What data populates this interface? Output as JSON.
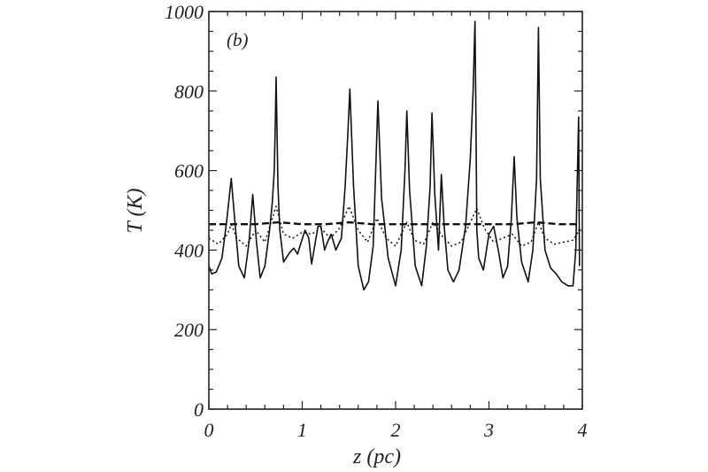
{
  "chart_data": {
    "type": "line",
    "panel_label": "(b)",
    "xlabel": "z  (pc)",
    "ylabel": "T  (K)",
    "xlim": [
      0,
      4
    ],
    "ylim": [
      0,
      1000
    ],
    "x_ticks": [
      "0",
      "1",
      "2",
      "3",
      "4"
    ],
    "y_ticks": [
      "0",
      "200",
      "400",
      "600",
      "800",
      "1000"
    ],
    "grid": false,
    "series": [
      {
        "style": "solid",
        "x": [
          0.0,
          0.03,
          0.08,
          0.14,
          0.19,
          0.24,
          0.28,
          0.32,
          0.38,
          0.43,
          0.47,
          0.51,
          0.55,
          0.6,
          0.65,
          0.68,
          0.7,
          0.71,
          0.72,
          0.73,
          0.74,
          0.76,
          0.8,
          0.87,
          0.91,
          0.95,
          0.99,
          1.03,
          1.07,
          1.1,
          1.14,
          1.17,
          1.2,
          1.24,
          1.27,
          1.31,
          1.36,
          1.42,
          1.46,
          1.49,
          1.51,
          1.55,
          1.6,
          1.66,
          1.71,
          1.76,
          1.79,
          1.81,
          1.85,
          1.92,
          2.0,
          2.06,
          2.1,
          2.12,
          2.15,
          2.21,
          2.28,
          2.33,
          2.37,
          2.39,
          2.42,
          2.46,
          2.49,
          2.52,
          2.56,
          2.62,
          2.68,
          2.75,
          2.8,
          2.83,
          2.85,
          2.86,
          2.87,
          2.89,
          2.94,
          3.0,
          3.05,
          3.1,
          3.15,
          3.2,
          3.24,
          3.27,
          3.3,
          3.35,
          3.42,
          3.47,
          3.51,
          3.53,
          3.55,
          3.6,
          3.66,
          3.72,
          3.78,
          3.85,
          3.9,
          3.93,
          3.96,
          3.97
        ],
        "y": [
          360,
          340,
          345,
          380,
          470,
          580,
          470,
          360,
          330,
          420,
          540,
          420,
          330,
          360,
          450,
          520,
          600,
          700,
          835,
          700,
          560,
          450,
          370,
          395,
          405,
          390,
          420,
          450,
          430,
          365,
          420,
          460,
          460,
          400,
          420,
          440,
          400,
          430,
          560,
          700,
          805,
          560,
          360,
          300,
          320,
          410,
          620,
          775,
          530,
          380,
          310,
          400,
          600,
          750,
          550,
          360,
          310,
          410,
          560,
          745,
          540,
          400,
          590,
          460,
          350,
          320,
          350,
          460,
          630,
          800,
          975,
          750,
          450,
          380,
          350,
          440,
          460,
          400,
          330,
          360,
          480,
          635,
          480,
          370,
          320,
          400,
          580,
          960,
          580,
          400,
          355,
          340,
          320,
          310,
          310,
          400,
          735,
          360
        ]
      },
      {
        "style": "dotted",
        "x": [
          0.0,
          0.1,
          0.2,
          0.24,
          0.3,
          0.4,
          0.5,
          0.6,
          0.72,
          0.8,
          0.9,
          1.0,
          1.1,
          1.2,
          1.3,
          1.4,
          1.5,
          1.6,
          1.7,
          1.8,
          1.9,
          2.0,
          2.12,
          2.2,
          2.3,
          2.4,
          2.5,
          2.6,
          2.7,
          2.8,
          2.87,
          2.95,
          3.05,
          3.15,
          3.25,
          3.35,
          3.45,
          3.53,
          3.6,
          3.7,
          3.8,
          3.9,
          3.97
        ],
        "y": [
          430,
          415,
          440,
          465,
          430,
          410,
          450,
          420,
          510,
          440,
          430,
          445,
          440,
          455,
          430,
          455,
          510,
          450,
          420,
          480,
          430,
          410,
          470,
          425,
          415,
          470,
          435,
          410,
          420,
          470,
          505,
          455,
          420,
          430,
          440,
          410,
          420,
          470,
          430,
          415,
          420,
          425,
          450
        ]
      },
      {
        "style": "dashed",
        "x": [
          0.0,
          0.25,
          0.5,
          0.75,
          1.0,
          1.25,
          1.5,
          1.75,
          2.0,
          2.25,
          2.5,
          2.75,
          3.0,
          3.25,
          3.5,
          3.75,
          3.97
        ],
        "y": [
          465,
          465,
          465,
          470,
          465,
          465,
          470,
          465,
          465,
          465,
          465,
          465,
          465,
          465,
          470,
          465,
          465
        ]
      }
    ]
  }
}
